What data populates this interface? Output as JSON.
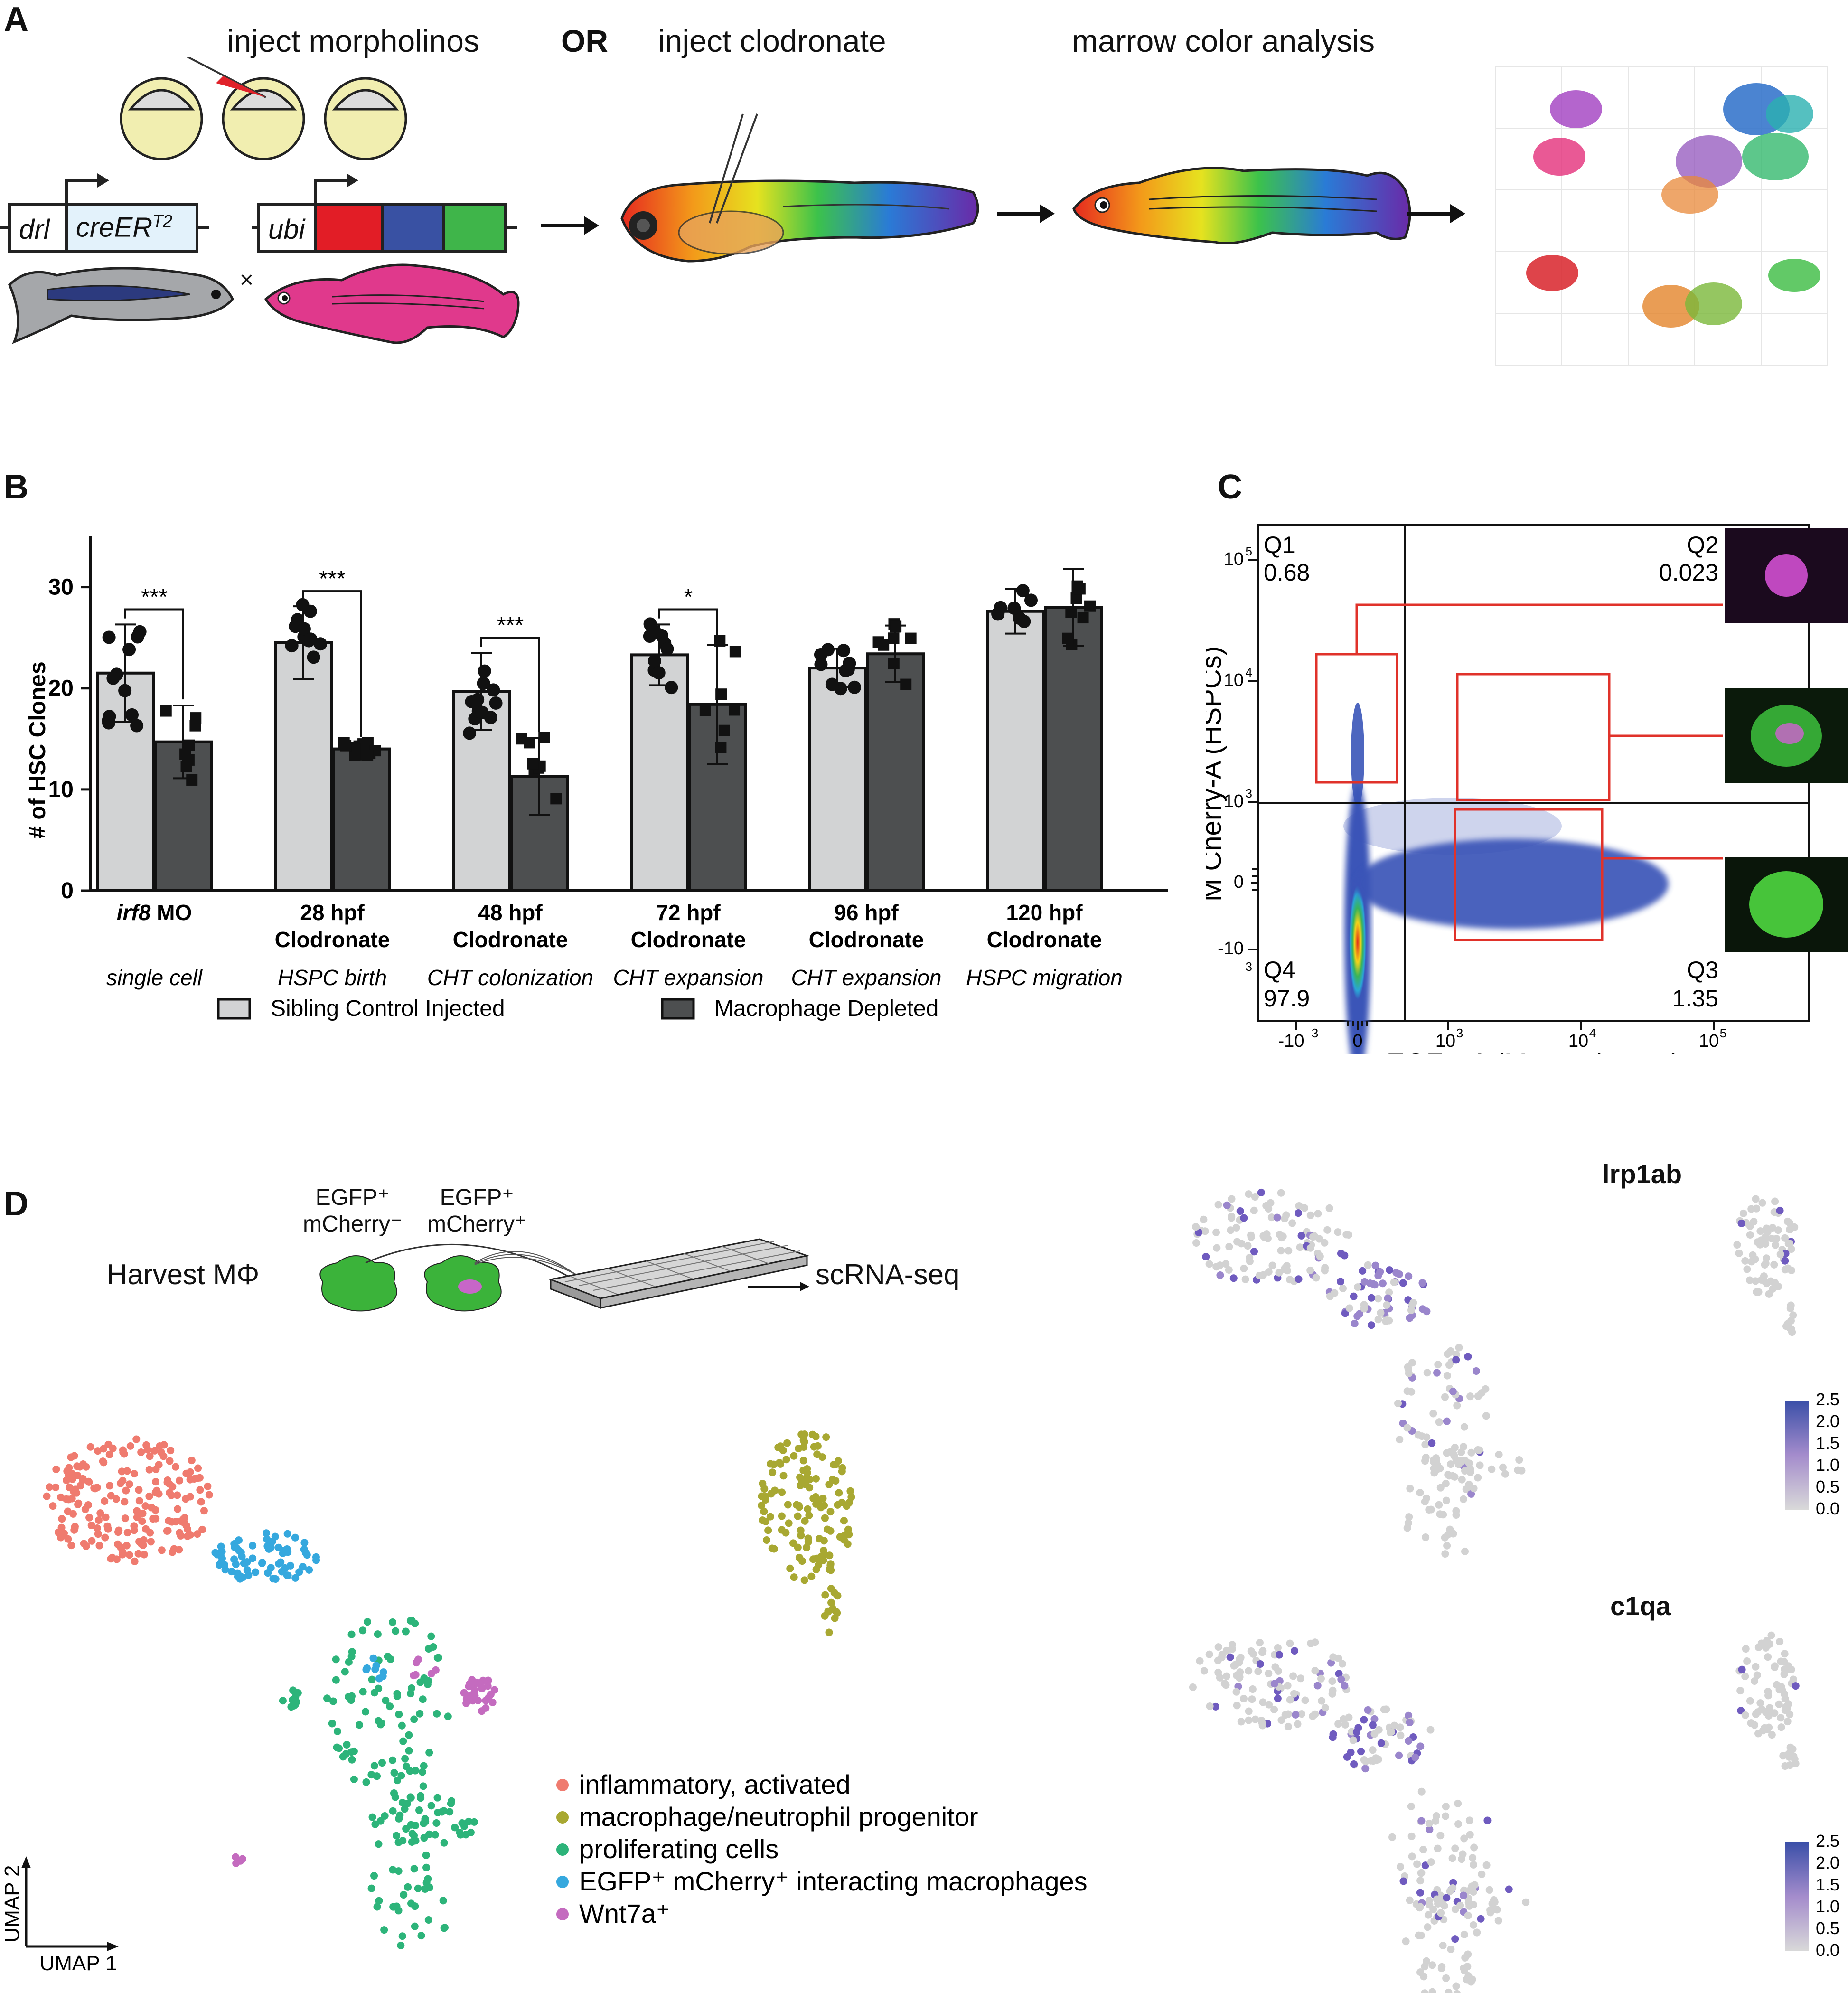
{
  "panels": {
    "a": "A",
    "b": "B",
    "c": "C",
    "d": "D"
  },
  "panelA": {
    "step1": "inject morpholinos",
    "or": "OR",
    "step2": "inject clodronate",
    "step3": "marrow color analysis",
    "construct1_a": "drl",
    "construct1_b": "creER",
    "construct1_sup": "T2",
    "construct2": "ubi",
    "cross": "×"
  },
  "panelB": {
    "ylabel": "# of HSC Clones",
    "yticks": [
      "0",
      "10",
      "20",
      "30"
    ],
    "groups": [
      {
        "label1": "irf8 MO",
        "label1_italic_part": "irf8",
        "label2": "",
        "stage": "single cell"
      },
      {
        "label1": "28 hpf",
        "label2": "Clodronate",
        "stage": "HSPC birth"
      },
      {
        "label1": "48 hpf",
        "label2": "Clodronate",
        "stage": "CHT colonization"
      },
      {
        "label1": "72 hpf",
        "label2": "Clodronate",
        "stage": "CHT expansion"
      },
      {
        "label1": "96 hpf",
        "label2": "Clodronate",
        "stage": "CHT expansion"
      },
      {
        "label1": "120 hpf",
        "label2": "Clodronate",
        "stage": "HSPC migration"
      }
    ],
    "significance": [
      "***",
      "***",
      "***",
      "*",
      "",
      ""
    ],
    "legend": {
      "control": "Sibling Control Injected",
      "depleted": "Macrophage Depleted"
    }
  },
  "chart_data": {
    "type": "bar",
    "title": "",
    "ylabel": "# of HSC Clones",
    "ylim": [
      0,
      35
    ],
    "categories": [
      "irf8 MO",
      "28 hpf Clodronate",
      "48 hpf Clodronate",
      "72 hpf Clodronate",
      "96 hpf Clodronate",
      "120 hpf Clodronate"
    ],
    "series": [
      {
        "name": "Sibling Control Injected",
        "values": [
          21.5,
          24.5,
          19.7,
          23.3,
          22.0,
          27.6
        ],
        "sd": [
          4.8,
          3.6,
          3.8,
          3.0,
          1.9,
          2.2
        ],
        "color": "#d2d3d4"
      },
      {
        "name": "Macrophage Depleted",
        "values": [
          14.7,
          14.0,
          11.3,
          18.4,
          23.4,
          28.0
        ],
        "sd": [
          3.6,
          0.6,
          3.8,
          5.9,
          2.8,
          3.8
        ],
        "color": "#4d4f50"
      }
    ]
  },
  "panelC": {
    "xlabel": "EGFP-A (Macrophages)",
    "ylabel": "M Cherry-A (HSPCs)",
    "q1": "Q1",
    "q1v": "0.68",
    "q2": "Q2",
    "q2v": "0.023",
    "q3": "Q3",
    "q3v": "1.35",
    "q4": "Q4",
    "q4v": "97.9",
    "yticks": [
      "10",
      "10",
      "10",
      "0",
      "-10"
    ],
    "ytick_exp": [
      "5",
      "4",
      "3",
      "",
      "3"
    ],
    "xticks": [
      "-10",
      "0",
      "10",
      "10",
      "10"
    ],
    "xtick_exp": [
      "3",
      "",
      "3",
      "4",
      "5"
    ]
  },
  "panelD": {
    "harvest": "Harvest MΦ",
    "egfp1": "EGFP⁺",
    "mch1": "mCherry⁻",
    "egfp2": "EGFP⁺",
    "mch2": "mCherry⁺",
    "scrna": "scRNA-seq",
    "gene1": "lrp1ab",
    "gene2": "c1qa",
    "scale": [
      "2.5",
      "2.0",
      "1.5",
      "1.0",
      "0.5",
      "0.0"
    ],
    "umap1": "UMAP 1",
    "umap2": "UMAP 2",
    "clusters": [
      {
        "name": "inflammatory, activated",
        "color": "#ef7b6f"
      },
      {
        "name": "macrophage/neutrophil progenitor",
        "color": "#a8a832"
      },
      {
        "name": "proliferating cells",
        "color": "#2db47a"
      },
      {
        "name": "EGFP⁺ mCherry⁺ interacting macrophages",
        "color": "#35a8de"
      },
      {
        "name": "Wnt7a⁺",
        "color": "#c46bbf"
      }
    ]
  }
}
